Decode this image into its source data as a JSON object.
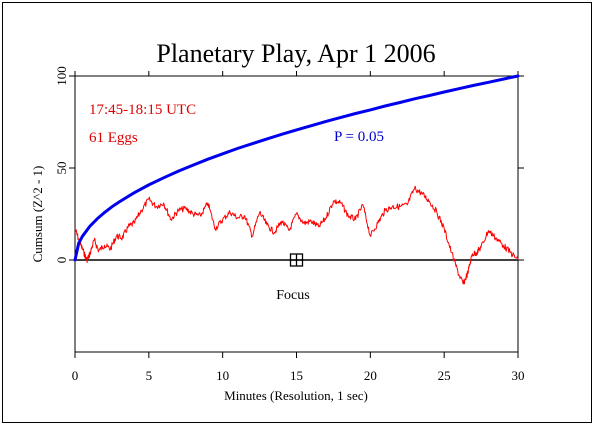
{
  "chart_data": {
    "type": "line",
    "title": "Planetary Play, Apr 1 2006",
    "xlabel": "Minutes (Resolution, 1 sec)",
    "ylabel": "Cumsum (Z^2 - 1)",
    "xlim": [
      0,
      30
    ],
    "ylim": [
      -50,
      100
    ],
    "x_ticks": [
      0,
      5,
      10,
      15,
      20,
      25,
      30
    ],
    "y_ticks": [
      0,
      50,
      100
    ],
    "grid": false,
    "annotations": {
      "time_range": "17:45-18:15 UTC",
      "eggs": "61 Eggs",
      "p_label": "P = 0.05",
      "focus_label": "Focus"
    },
    "focus_marker": {
      "x": 15,
      "y": 0
    },
    "colors": {
      "data": "#ff0000",
      "envelope": "#0000ee",
      "text_red": "#dd0000",
      "text_blue": "#0000cc",
      "axis": "#000000"
    },
    "series": [
      {
        "name": "Cumsum",
        "x": [
          0,
          0.3,
          0.6,
          0.8,
          1.0,
          1.3,
          1.6,
          2.0,
          2.4,
          2.8,
          3.2,
          3.6,
          4.0,
          4.5,
          5.0,
          5.5,
          6.0,
          6.5,
          7.0,
          7.5,
          8.0,
          8.5,
          9.0,
          9.5,
          10.0,
          10.5,
          11.0,
          11.5,
          12.0,
          12.5,
          13.0,
          13.5,
          14.0,
          14.5,
          15.0,
          15.5,
          16.0,
          16.5,
          17.0,
          17.5,
          18.0,
          18.5,
          19.0,
          19.5,
          20.0,
          20.5,
          21.0,
          21.5,
          22.0,
          22.5,
          23.0,
          23.5,
          24.0,
          24.5,
          25.0,
          25.5,
          26.0,
          26.3,
          26.6,
          26.9,
          27.2,
          27.5,
          28.0,
          28.5,
          29.0,
          29.5,
          30.0
        ],
        "y": [
          17,
          10,
          4,
          0,
          3,
          11,
          5,
          8,
          6,
          13,
          12,
          18,
          20,
          27,
          33,
          29,
          31,
          22,
          27,
          28,
          25,
          24,
          31,
          17,
          22,
          26,
          23,
          24,
          13,
          26,
          19,
          15,
          21,
          16,
          25,
          20,
          21,
          18,
          23,
          32,
          31,
          24,
          22,
          30,
          13,
          20,
          27,
          29,
          29,
          30,
          39,
          36,
          32,
          26,
          17,
          4,
          -8,
          -13,
          -7,
          3,
          4,
          7,
          16,
          12,
          8,
          4,
          0
        ]
      },
      {
        "name": "P = 0.05",
        "x": [
          0,
          0.25,
          0.5,
          1,
          1.5,
          2,
          2.5,
          3,
          4,
          5,
          6,
          7,
          8,
          9,
          10,
          11,
          12,
          13,
          14,
          15,
          16,
          17,
          18,
          19,
          20,
          21,
          22,
          23,
          24,
          25,
          26,
          27,
          28,
          29,
          30
        ],
        "y": [
          0,
          9.1,
          12.9,
          18.3,
          22.4,
          25.8,
          28.9,
          31.6,
          36.5,
          40.8,
          44.7,
          48.3,
          51.6,
          54.8,
          57.7,
          60.6,
          63.2,
          65.8,
          68.3,
          70.7,
          73.0,
          75.3,
          77.5,
          79.6,
          81.6,
          83.7,
          85.6,
          87.6,
          89.4,
          91.3,
          93.1,
          94.9,
          96.6,
          98.3,
          100.0
        ]
      }
    ]
  }
}
